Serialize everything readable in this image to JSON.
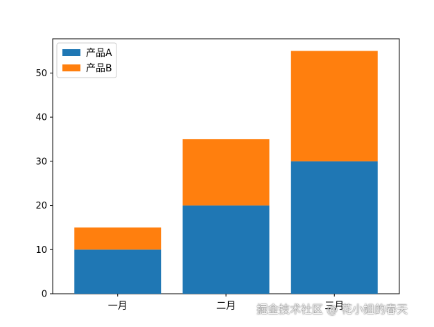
{
  "chart_data": {
    "type": "bar",
    "stacked": true,
    "categories": [
      "一月",
      "二月",
      "三月"
    ],
    "series": [
      {
        "name": "产品A",
        "values": [
          10,
          20,
          30
        ],
        "color": "#1f77b4"
      },
      {
        "name": "产品B",
        "values": [
          5,
          15,
          25
        ],
        "color": "#ff7f0e"
      }
    ],
    "yticks": [
      0,
      10,
      20,
      30,
      40,
      50
    ],
    "ylim": [
      0,
      57.75
    ],
    "grid": false,
    "legend_position": "top-left"
  },
  "watermark": "掘金技术社区 @ 花小姐的春天"
}
